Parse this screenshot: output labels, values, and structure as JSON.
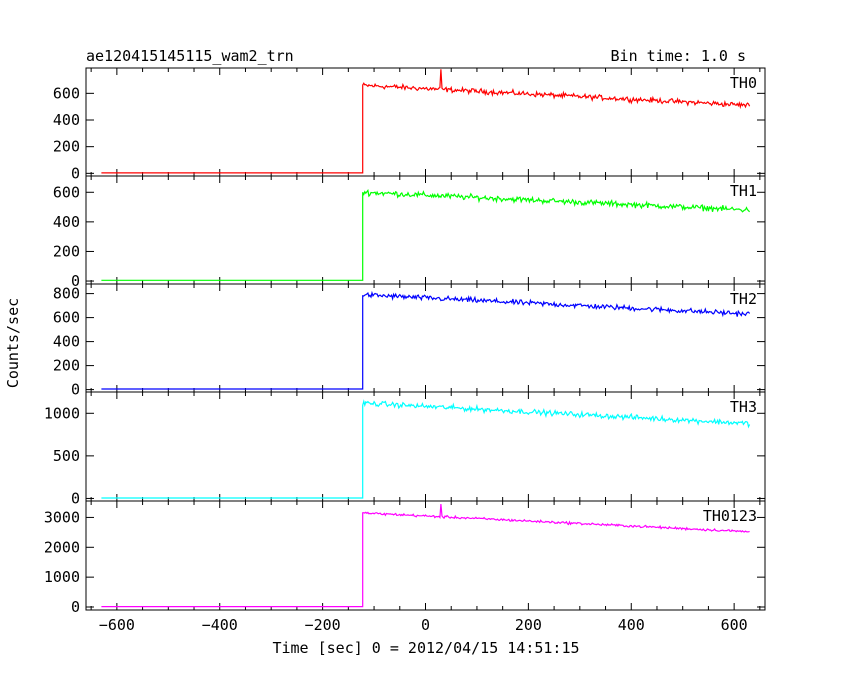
{
  "header": {
    "title": "ae120415145115_wam2_trn",
    "bin_time": "Bin time: 1.0 s"
  },
  "axes": {
    "xlabel": "Time [sec] 0 = 2012/04/15 14:51:15",
    "ylabel": "Counts/sec"
  },
  "chart_data": {
    "type": "line",
    "title": "ae120415145115_wam2_trn",
    "xlabel": "Time [sec] 0 = 2012/04/15 14:51:15",
    "ylabel": "Counts/sec",
    "xlim": [
      -660,
      660
    ],
    "x_ticks": [
      -600,
      -400,
      -200,
      0,
      200,
      400,
      600
    ],
    "x_tick_labels": [
      "−600",
      "−400",
      "−200",
      "0",
      "200",
      "400",
      "600"
    ],
    "step_time": -122,
    "x_end": 630,
    "grid": false,
    "panels": [
      {
        "name": "TH0",
        "color": "#ff0000",
        "ylim": [
          -20,
          790
        ],
        "y_ticks": [
          0,
          200,
          400,
          600
        ],
        "pre_level": 3,
        "start_level": 660,
        "end_level": 510,
        "noise": 28,
        "spike": [
          30,
          780
        ]
      },
      {
        "name": "TH1",
        "color": "#00ff00",
        "ylim": [
          -20,
          710
        ],
        "y_ticks": [
          0,
          200,
          400,
          600
        ],
        "pre_level": 5,
        "start_level": 600,
        "end_level": 480,
        "noise": 28,
        "spike": null
      },
      {
        "name": "TH2",
        "color": "#0000ff",
        "ylim": [
          -20,
          880
        ],
        "y_ticks": [
          0,
          200,
          400,
          600,
          800
        ],
        "pre_level": 5,
        "start_level": 790,
        "end_level": 630,
        "noise": 32,
        "spike": null
      },
      {
        "name": "TH3",
        "color": "#00ffff",
        "ylim": [
          -30,
          1250
        ],
        "y_ticks": [
          0,
          500,
          1000
        ],
        "pre_level": 5,
        "start_level": 1120,
        "end_level": 880,
        "noise": 45,
        "spike": null
      },
      {
        "name": "TH0123",
        "color": "#ff00ff",
        "ylim": [
          -100,
          3550
        ],
        "y_ticks": [
          0,
          1000,
          2000,
          3000
        ],
        "pre_level": 15,
        "start_level": 3150,
        "end_level": 2520,
        "noise": 60,
        "spike": [
          30,
          3450
        ]
      }
    ]
  }
}
